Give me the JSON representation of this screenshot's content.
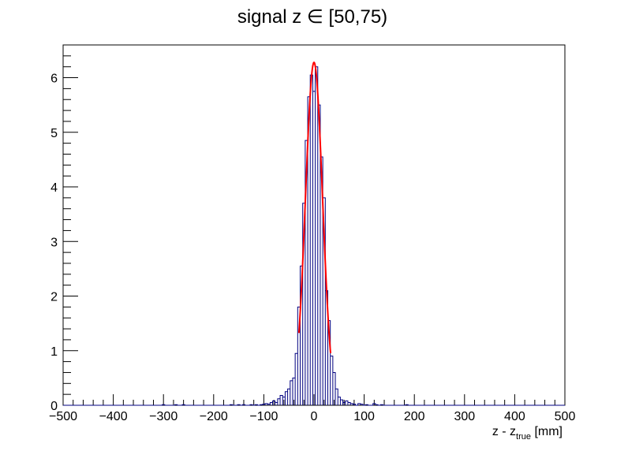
{
  "chart_data": {
    "type": "histogram",
    "title": "signal z ∈ [50,75)",
    "xlabel": {
      "main": "z - z",
      "subscript": "true",
      "unit": " [mm]"
    },
    "ylabel": "",
    "xlim": [
      -500,
      500
    ],
    "ylim": [
      0,
      6.6
    ],
    "x_ticks": [
      "−500",
      "−400",
      "−300",
      "−200",
      "−100",
      "0",
      "100",
      "200",
      "300",
      "400",
      "500"
    ],
    "x_tick_values": [
      -500,
      -400,
      -300,
      -200,
      -100,
      0,
      100,
      200,
      300,
      400,
      500
    ],
    "y_ticks": [
      "0",
      "1",
      "2",
      "3",
      "4",
      "5",
      "6"
    ],
    "y_tick_values": [
      0,
      1,
      2,
      3,
      4,
      5,
      6
    ],
    "grid": false,
    "histogram": {
      "bin_width": 5,
      "color": "#000080",
      "bins": [
        {
          "x": -300,
          "y": 0.01
        },
        {
          "x": -275,
          "y": 0.01
        },
        {
          "x": -260,
          "y": 0.01
        },
        {
          "x": -165,
          "y": 0.01
        },
        {
          "x": -150,
          "y": 0.01
        },
        {
          "x": -140,
          "y": 0.01
        },
        {
          "x": -125,
          "y": 0.01
        },
        {
          "x": -115,
          "y": 0.01
        },
        {
          "x": -105,
          "y": 0.01
        },
        {
          "x": -100,
          "y": 0.02
        },
        {
          "x": -95,
          "y": 0.03
        },
        {
          "x": -90,
          "y": 0.02
        },
        {
          "x": -85,
          "y": 0.05
        },
        {
          "x": -80,
          "y": 0.08
        },
        {
          "x": -75,
          "y": 0.05
        },
        {
          "x": -70,
          "y": 0.12
        },
        {
          "x": -65,
          "y": 0.18
        },
        {
          "x": -60,
          "y": 0.15
        },
        {
          "x": -55,
          "y": 0.25
        },
        {
          "x": -50,
          "y": 0.3
        },
        {
          "x": -45,
          "y": 0.45
        },
        {
          "x": -40,
          "y": 0.5
        },
        {
          "x": -35,
          "y": 0.95
        },
        {
          "x": -30,
          "y": 1.8
        },
        {
          "x": -25,
          "y": 2.55
        },
        {
          "x": -20,
          "y": 3.7
        },
        {
          "x": -15,
          "y": 4.85
        },
        {
          "x": -10,
          "y": 5.65
        },
        {
          "x": -5,
          "y": 6.05
        },
        {
          "x": 0,
          "y": 5.75
        },
        {
          "x": 5,
          "y": 6.2
        },
        {
          "x": 10,
          "y": 5.5
        },
        {
          "x": 15,
          "y": 4.55
        },
        {
          "x": 20,
          "y": 3.8
        },
        {
          "x": 25,
          "y": 2.1
        },
        {
          "x": 30,
          "y": 1.55
        },
        {
          "x": 35,
          "y": 0.9
        },
        {
          "x": 40,
          "y": 0.6
        },
        {
          "x": 45,
          "y": 0.3
        },
        {
          "x": 50,
          "y": 0.15
        },
        {
          "x": 55,
          "y": 0.1
        },
        {
          "x": 60,
          "y": 0.05
        },
        {
          "x": 65,
          "y": 0.08
        },
        {
          "x": 70,
          "y": 0.05
        },
        {
          "x": 75,
          "y": 0.03
        },
        {
          "x": 80,
          "y": 0.02
        },
        {
          "x": 90,
          "y": 0.03
        },
        {
          "x": 95,
          "y": 0.02
        },
        {
          "x": 105,
          "y": 0.01
        },
        {
          "x": 120,
          "y": 0.03
        },
        {
          "x": 125,
          "y": 0.01
        },
        {
          "x": 135,
          "y": 0.01
        },
        {
          "x": 185,
          "y": 0.01
        }
      ]
    },
    "fit": {
      "type": "gaussian",
      "color": "#ff0000",
      "amplitude": 6.28,
      "mean": 0,
      "sigma": 17,
      "x_range": [
        -30,
        33
      ]
    }
  }
}
